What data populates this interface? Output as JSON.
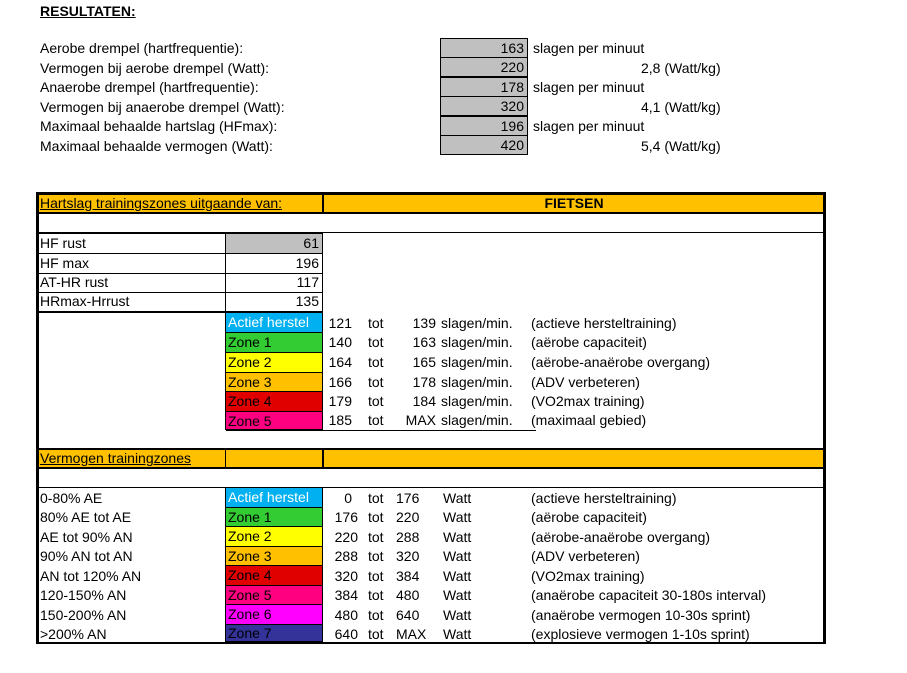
{
  "results": {
    "heading": "RESULTATEN:",
    "rows": [
      {
        "label": "Aerobe drempel (hartfrequentie):",
        "value": "163",
        "unit": "slagen per minuut",
        "extra": ""
      },
      {
        "label": "Vermogen bij aerobe drempel (Watt):",
        "value": "220",
        "unit": "",
        "extra": "2,8  (Watt/kg)"
      },
      {
        "label": "Anaerobe drempel (hartfrequentie):",
        "value": "178",
        "unit": "slagen per minuut",
        "extra": ""
      },
      {
        "label": "Vermogen bij anaerobe drempel (Watt):",
        "value": "320",
        "unit": "",
        "extra": "4,1  (Watt/kg)"
      },
      {
        "label": "Maximaal behaalde hartslag (HFmax):",
        "value": "196",
        "unit": "slagen per minuut",
        "extra": ""
      },
      {
        "label": "Maximaal behaalde vermogen (Watt):",
        "value": "420",
        "unit": "",
        "extra": "5,4  (Watt/kg)"
      }
    ]
  },
  "hr_section": {
    "header_label": "Hartslag trainingszones uitgaande van:",
    "sport": "FIETSEN",
    "params": [
      {
        "label": "HF rust",
        "value": "61"
      },
      {
        "label": "HF max",
        "value": "196"
      },
      {
        "label": "AT-HR rust",
        "value": "117"
      },
      {
        "label": "HRmax-Hrrust",
        "value": "135"
      }
    ],
    "zones": [
      {
        "name": "Actief herstel",
        "from": "121",
        "tot": "tot",
        "to": "139",
        "unit": "slagen/min.",
        "desc": "(actieve hersteltraining)",
        "color": "#00b0f0"
      },
      {
        "name": "Zone 1",
        "from": "140",
        "tot": "tot",
        "to": "163",
        "unit": "slagen/min.",
        "desc": "(aërobe capaciteit)",
        "color": "#33cc33"
      },
      {
        "name": "Zone 2",
        "from": "164",
        "tot": "tot",
        "to": "165",
        "unit": "slagen/min.",
        "desc": "(aërobe-anaërobe overgang)",
        "color": "#ffff00"
      },
      {
        "name": "Zone 3",
        "from": "166",
        "tot": "tot",
        "to": "178",
        "unit": "slagen/min.",
        "desc": "(ADV verbeteren)",
        "color": "#ffc000"
      },
      {
        "name": "Zone 4",
        "from": "179",
        "tot": "tot",
        "to": "184",
        "unit": "slagen/min.",
        "desc": "(VO2max training)",
        "color": "#e00000"
      },
      {
        "name": "Zone 5",
        "from": "185",
        "tot": "tot",
        "to": "MAX",
        "unit": "slagen/min.",
        "desc": "(maximaal gebied)",
        "color": "#ff0080"
      }
    ]
  },
  "power_section": {
    "header_label": "Vermogen trainingzones",
    "zones": [
      {
        "label": "0-80% AE",
        "name": "Actief herstel",
        "from": "0",
        "tot": "tot",
        "to": "176",
        "unit": "Watt",
        "desc": "(actieve hersteltraining)",
        "color": "#00b0f0"
      },
      {
        "label": "80% AE tot AE",
        "name": "Zone 1",
        "from": "176",
        "tot": "tot",
        "to": "220",
        "unit": "Watt",
        "desc": "(aërobe capaciteit)",
        "color": "#33cc33"
      },
      {
        "label": "AE tot 90% AN",
        "name": "Zone 2",
        "from": "220",
        "tot": "tot",
        "to": "288",
        "unit": "Watt",
        "desc": "(aërobe-anaërobe overgang)",
        "color": "#ffff00"
      },
      {
        "label": "90% AN tot AN",
        "name": "Zone 3",
        "from": "288",
        "tot": "tot",
        "to": "320",
        "unit": "Watt",
        "desc": "(ADV verbeteren)",
        "color": "#ffc000"
      },
      {
        "label": "AN tot 120% AN",
        "name": "Zone 4",
        "from": "320",
        "tot": "tot",
        "to": "384",
        "unit": "Watt",
        "desc": "(VO2max training)",
        "color": "#e00000"
      },
      {
        "label": "120-150% AN",
        "name": "Zone 5",
        "from": "384",
        "tot": "tot",
        "to": "480",
        "unit": "Watt",
        "desc": "(anaërobe capaciteit 30-180s interval)",
        "color": "#ff0080"
      },
      {
        "label": "150-200% AN",
        "name": "Zone 6",
        "from": "480",
        "tot": "tot",
        "to": "640",
        "unit": "Watt",
        "desc": "(anaërobe vermogen 10-30s sprint)",
        "color": "#ff00ff"
      },
      {
        "label": ">200% AN",
        "name": "Zone 7",
        "from": "640",
        "tot": "tot",
        "to": "MAX",
        "unit": "Watt",
        "desc": "(explosieve vermogen 1-10s sprint)",
        "color": "#333399"
      }
    ]
  }
}
